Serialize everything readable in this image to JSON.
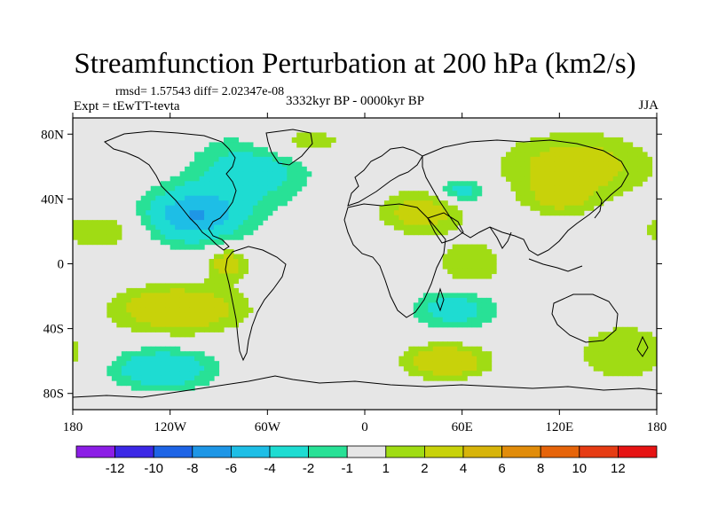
{
  "header": {
    "title": "Streamfunction Perturbation at 200 hPa (km2/s)",
    "stats": "rmsd= 1.57543 diff= 2.02347e-08",
    "expt": "Expt = tEwTT-tevta",
    "period": "3332kyr BP - 0000kyr BP",
    "season": "JJA"
  },
  "chart_data": {
    "type": "heatmap",
    "title": "Streamfunction Perturbation at 200 hPa (km2/s)",
    "xlabel": "",
    "ylabel": "",
    "xlim": [
      -180,
      180
    ],
    "ylim": [
      -90,
      90
    ],
    "x_ticks": [
      {
        "value": -180,
        "label": "180"
      },
      {
        "value": -120,
        "label": "120W"
      },
      {
        "value": -60,
        "label": "60W"
      },
      {
        "value": 0,
        "label": "0"
      },
      {
        "value": 60,
        "label": "60E"
      },
      {
        "value": 120,
        "label": "120E"
      },
      {
        "value": 180,
        "label": "180"
      }
    ],
    "y_ticks": [
      {
        "value": 80,
        "label": "80N"
      },
      {
        "value": 40,
        "label": "40N"
      },
      {
        "value": 0,
        "label": "0"
      },
      {
        "value": -40,
        "label": "40S"
      },
      {
        "value": -80,
        "label": "80S"
      }
    ],
    "colorbar": {
      "labels": [
        "-12",
        "-10",
        "-8",
        "-6",
        "-4",
        "-2",
        "-1",
        "1",
        "2",
        "4",
        "6",
        "8",
        "10",
        "12"
      ],
      "colors": [
        "#8c1ee6",
        "#3c28e6",
        "#1e64e6",
        "#1e96e6",
        "#1ebee6",
        "#1edcd2",
        "#28e196",
        "#e6e6e6",
        "#a0dc14",
        "#c8d20a",
        "#d7b40a",
        "#e18c0a",
        "#e6640a",
        "#e63c14",
        "#e61414"
      ]
    },
    "field_blobs": [
      {
        "lon": -105,
        "lat": 30,
        "rlon": 28,
        "rlat": 16,
        "amp": -6
      },
      {
        "lon": -70,
        "lat": 58,
        "rlon": 35,
        "rlat": 22,
        "amp": -3
      },
      {
        "lon": -125,
        "lat": -65,
        "rlon": 30,
        "rlat": 12,
        "amp": -4
      },
      {
        "lon": 55,
        "lat": -28,
        "rlon": 25,
        "rlat": 12,
        "amp": -3
      },
      {
        "lon": 60,
        "lat": 45,
        "rlon": 15,
        "rlat": 8,
        "amp": -3
      },
      {
        "lon": -30,
        "lat": 15,
        "rlon": 30,
        "rlat": 15,
        "amp": -0.5
      },
      {
        "lon": -115,
        "lat": -28,
        "rlon": 38,
        "rlat": 14,
        "amp": 4
      },
      {
        "lon": 35,
        "lat": 32,
        "rlon": 25,
        "rlat": 13,
        "amp": 3
      },
      {
        "lon": 130,
        "lat": 60,
        "rlon": 45,
        "rlat": 20,
        "amp": 3
      },
      {
        "lon": 120,
        "lat": 40,
        "rlon": 20,
        "rlat": 10,
        "amp": 2
      },
      {
        "lon": -85,
        "lat": 0,
        "rlon": 12,
        "rlat": 10,
        "amp": 3
      },
      {
        "lon": 65,
        "lat": 0,
        "rlon": 20,
        "rlat": 15,
        "amp": 2
      },
      {
        "lon": 50,
        "lat": -60,
        "rlon": 25,
        "rlat": 10,
        "amp": 4
      },
      {
        "lon": 160,
        "lat": -55,
        "rlon": 30,
        "rlat": 18,
        "amp": 2
      },
      {
        "lon": -165,
        "lat": 20,
        "rlon": 25,
        "rlat": 10,
        "amp": 2
      },
      {
        "lon": -40,
        "lat": 75,
        "rlon": 30,
        "rlat": 10,
        "amp": 2
      }
    ]
  }
}
